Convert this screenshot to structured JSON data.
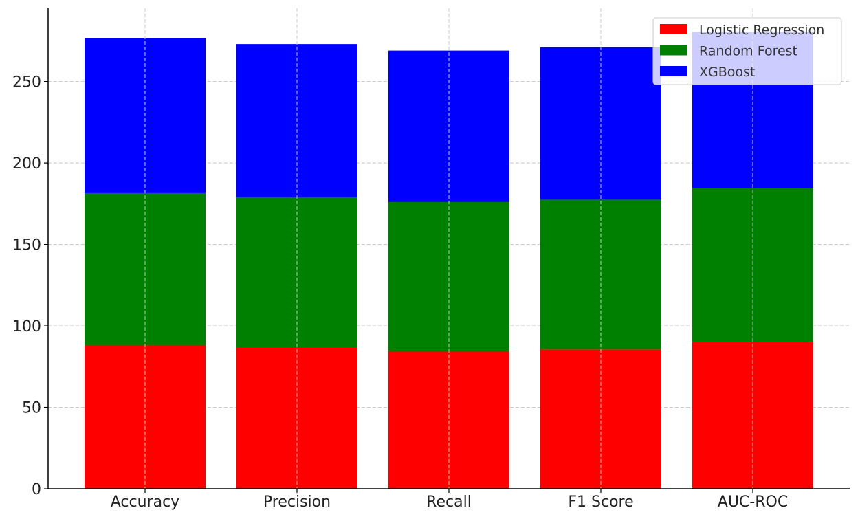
{
  "chart_data": {
    "type": "bar",
    "stacked": true,
    "title": "",
    "xlabel": "",
    "ylabel": "",
    "categories": [
      "Accuracy",
      "Precision",
      "Recall",
      "F1 Score",
      "AUC-ROC"
    ],
    "series": [
      {
        "name": "Logistic Regression",
        "color": "#ff0000",
        "values": [
          88,
          86.5,
          84.5,
          85.5,
          90
        ]
      },
      {
        "name": "Random Forest",
        "color": "#008000",
        "values": [
          93.5,
          92.5,
          91.5,
          92,
          94.5
        ]
      },
      {
        "name": "XGBoost",
        "color": "#0000ff",
        "values": [
          95,
          94,
          93,
          93.5,
          96
        ]
      }
    ],
    "ylim": [
      0,
      295
    ],
    "yticks": [
      0,
      50,
      100,
      150,
      200,
      250
    ],
    "grid": true,
    "legend_position": "top-right"
  }
}
